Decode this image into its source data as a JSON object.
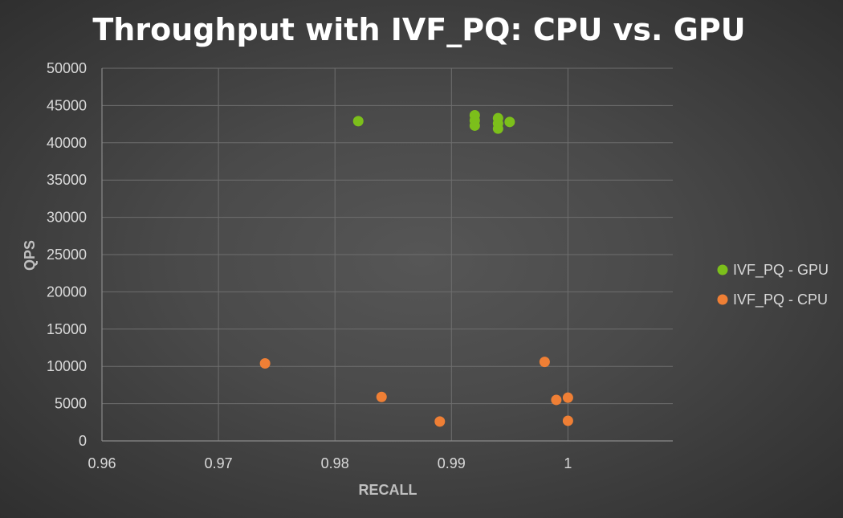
{
  "chart_data": {
    "type": "scatter",
    "title": "Throughput with IVF_PQ: CPU vs. GPU",
    "xlabel": "RECALL",
    "ylabel": "QPS",
    "xlim": [
      0.96,
      1.009
    ],
    "ylim": [
      0,
      50000
    ],
    "x_ticks": [
      0.96,
      0.97,
      0.98,
      0.99,
      1
    ],
    "x_tick_labels": [
      "0.96",
      "0.97",
      "0.98",
      "0.99",
      "1"
    ],
    "y_ticks": [
      0,
      5000,
      10000,
      15000,
      20000,
      25000,
      30000,
      35000,
      40000,
      45000,
      50000
    ],
    "y_tick_labels": [
      "0",
      "5000",
      "10000",
      "15000",
      "20000",
      "25000",
      "30000",
      "35000",
      "40000",
      "45000",
      "50000"
    ],
    "grid": true,
    "legend_position": "right",
    "series": [
      {
        "name": "IVF_PQ - GPU",
        "color": "#7cbf1b",
        "points": [
          {
            "x": 0.982,
            "y": 42900
          },
          {
            "x": 0.992,
            "y": 43700
          },
          {
            "x": 0.992,
            "y": 43000
          },
          {
            "x": 0.992,
            "y": 42300
          },
          {
            "x": 0.994,
            "y": 43300
          },
          {
            "x": 0.994,
            "y": 42600
          },
          {
            "x": 0.994,
            "y": 41900
          },
          {
            "x": 0.995,
            "y": 42800
          }
        ]
      },
      {
        "name": "IVF_PQ - CPU",
        "color": "#ef7f35",
        "points": [
          {
            "x": 0.974,
            "y": 10400
          },
          {
            "x": 0.984,
            "y": 5900
          },
          {
            "x": 0.989,
            "y": 2600
          },
          {
            "x": 0.998,
            "y": 10600
          },
          {
            "x": 0.999,
            "y": 5500
          },
          {
            "x": 1.0,
            "y": 5800
          },
          {
            "x": 1.0,
            "y": 2700
          }
        ]
      }
    ]
  }
}
